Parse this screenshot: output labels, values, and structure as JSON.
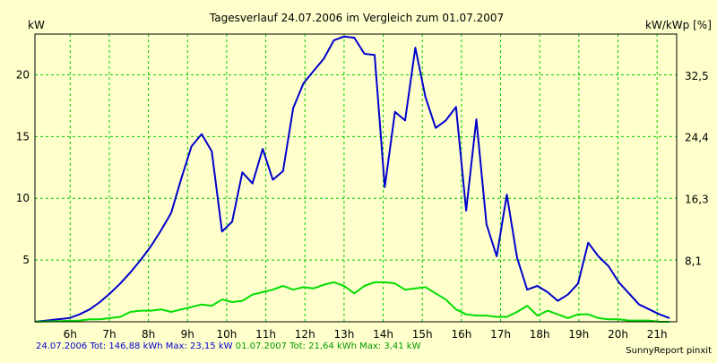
{
  "chart_data": {
    "type": "line",
    "title": "Tagesverlauf 24.07.2006 im Vergleich zum 01.07.2007",
    "y_left_label": "kW",
    "y_right_label": "kW/kWp [%]",
    "x_ticks": [
      "6h",
      "7h",
      "8h",
      "9h",
      "10h",
      "11h",
      "12h",
      "13h",
      "14h",
      "15h",
      "16h",
      "17h",
      "18h",
      "19h",
      "20h",
      "21h"
    ],
    "x_range": [
      5.1,
      21.5
    ],
    "ylim": [
      0,
      23.3
    ],
    "y_left_ticks": [
      5,
      10,
      15,
      20
    ],
    "y_right_ticks": [
      {
        "value": 4.9,
        "label": "8,1"
      },
      {
        "value": 9.9,
        "label": "16,3"
      },
      {
        "value": 14.9,
        "label": "24,4"
      },
      {
        "value": 19.9,
        "label": "32,5"
      }
    ],
    "grid": true,
    "series": [
      {
        "name": "24.07.2006",
        "color": "#0000cc",
        "x": [
          5.1,
          5.98,
          6.24,
          6.5,
          6.76,
          7.02,
          7.28,
          7.54,
          7.8,
          8.06,
          8.32,
          8.58,
          8.84,
          9.1,
          9.36,
          9.62,
          9.88,
          10.14,
          10.4,
          10.66,
          10.92,
          11.18,
          11.44,
          11.7,
          11.96,
          12.22,
          12.48,
          12.74,
          13.0,
          13.26,
          13.52,
          13.78,
          14.04,
          14.3,
          14.56,
          14.82,
          15.08,
          15.34,
          15.6,
          15.86,
          16.12,
          16.38,
          16.64,
          16.9,
          17.16,
          17.42,
          17.68,
          17.94,
          18.2,
          18.46,
          18.72,
          18.98,
          19.24,
          19.5,
          19.76,
          20.02,
          20.28,
          20.54,
          20.8,
          21.06,
          21.32
        ],
        "values": [
          0,
          0.3,
          0.6,
          1.0,
          1.6,
          2.3,
          3.1,
          4.0,
          5.0,
          6.1,
          7.4,
          8.8,
          11.6,
          14.2,
          15.2,
          13.8,
          7.3,
          8.1,
          12.1,
          11.2,
          14.0,
          11.5,
          12.2,
          17.3,
          19.3,
          20.3,
          21.3,
          22.8,
          23.1,
          23.0,
          21.7,
          21.6,
          10.9,
          17.0,
          16.3,
          22.2,
          18.2,
          15.7,
          16.3,
          17.4,
          9.0,
          16.4,
          7.9,
          5.3,
          10.3,
          5.2,
          2.6,
          2.9,
          2.4,
          1.7,
          2.2,
          3.1,
          6.4,
          5.3,
          4.5,
          3.2,
          2.3,
          1.4,
          1.0,
          0.6,
          0.3
        ]
      },
      {
        "name": "01.07.2007",
        "color": "#00dd00",
        "x": [
          5.1,
          6.24,
          6.5,
          6.76,
          7.02,
          7.28,
          7.54,
          7.8,
          8.06,
          8.32,
          8.58,
          8.84,
          9.1,
          9.36,
          9.62,
          9.88,
          10.14,
          10.4,
          10.66,
          10.92,
          11.18,
          11.44,
          11.7,
          11.96,
          12.22,
          12.48,
          12.74,
          13.0,
          13.26,
          13.52,
          13.78,
          14.04,
          14.3,
          14.56,
          14.82,
          15.08,
          15.34,
          15.6,
          15.86,
          16.12,
          16.38,
          16.64,
          16.9,
          17.16,
          17.42,
          17.68,
          17.94,
          18.2,
          18.46,
          18.72,
          18.98,
          19.24,
          19.5,
          19.76,
          20.02,
          20.28,
          20.54,
          20.8,
          21.06,
          21.32
        ],
        "values": [
          0,
          0.1,
          0.2,
          0.2,
          0.3,
          0.4,
          0.8,
          0.9,
          0.9,
          1.0,
          0.8,
          1.0,
          1.2,
          1.4,
          1.3,
          1.8,
          1.6,
          1.7,
          2.2,
          2.4,
          2.6,
          2.9,
          2.6,
          2.8,
          2.7,
          3.0,
          3.2,
          2.9,
          2.3,
          2.9,
          3.2,
          3.2,
          3.1,
          2.6,
          2.7,
          2.8,
          2.3,
          1.8,
          1.0,
          0.6,
          0.5,
          0.5,
          0.4,
          0.4,
          0.8,
          1.3,
          0.5,
          0.9,
          0.6,
          0.3,
          0.6,
          0.6,
          0.3,
          0.2,
          0.2,
          0.1,
          0.1,
          0.1,
          0.0,
          0.0
        ]
      }
    ]
  },
  "footer": {
    "series1_summary": "24.07.2006 Tot: 146,88 kWh Max: 23,15 kW",
    "series2_summary": "01.07.2007 Tot: 21,64 kWh Max: 3,41 kW",
    "credit": "SunnyReport pinxit"
  }
}
